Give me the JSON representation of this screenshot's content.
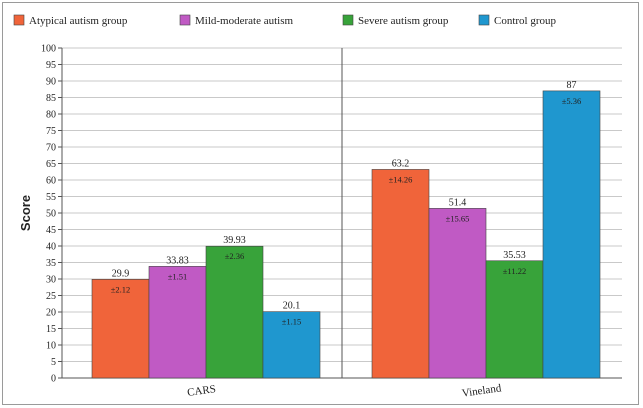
{
  "chart_data": {
    "type": "bar",
    "title": "",
    "xlabel": "",
    "ylabel": "Score",
    "ylim": [
      0,
      100
    ],
    "y_tick_step": 5,
    "categories": [
      "CARS",
      "Vineland"
    ],
    "series": [
      {
        "name": "Atypical autism group",
        "color": "#f0643a",
        "values": [
          29.9,
          63.2
        ],
        "value_labels": [
          "29.9",
          "63.2"
        ],
        "sd_labels": [
          "±2.12",
          "±14.26"
        ]
      },
      {
        "name": "Mild-moderate autism",
        "color": "#c05ac4",
        "values": [
          33.83,
          51.4
        ],
        "value_labels": [
          "33.83",
          "51.4"
        ],
        "sd_labels": [
          "±1.51",
          "±15.65"
        ]
      },
      {
        "name": "Severe autism group",
        "color": "#38a33a",
        "values": [
          39.93,
          35.53
        ],
        "value_labels": [
          "39.93",
          "35.53"
        ],
        "sd_labels": [
          "±2.36",
          "±11.22"
        ]
      },
      {
        "name": "Control group",
        "color": "#1f97cf",
        "values": [
          20.1,
          87
        ],
        "value_labels": [
          "20.1",
          "87"
        ],
        "sd_labels": [
          "±1.15",
          "±5.36"
        ]
      }
    ],
    "grid": true,
    "legend": "top-left"
  }
}
